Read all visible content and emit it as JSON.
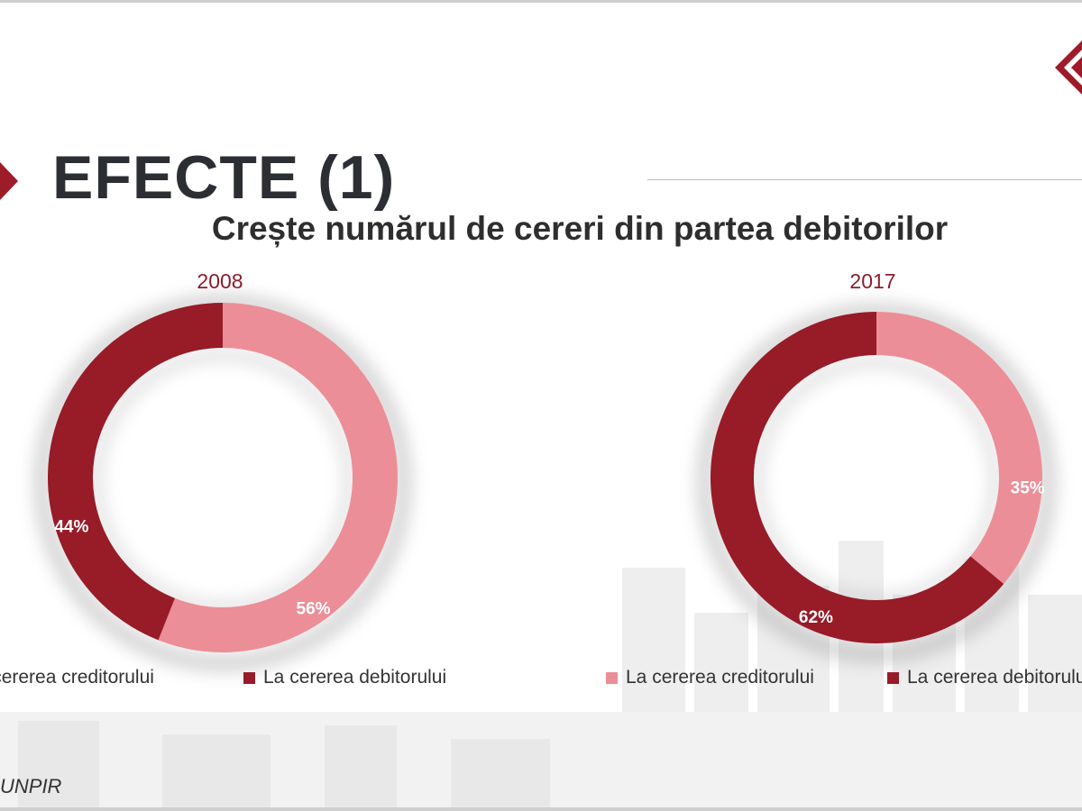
{
  "slide": {
    "title": "EFECTE (1)",
    "subtitle": "Crește numărul de cereri din partea debitorilor",
    "source": "UNPIR"
  },
  "colors": {
    "creditor": "#ec8e97",
    "debitor": "#981b28",
    "title_text": "#2b2f33",
    "accent": "#8b1e2a"
  },
  "chart_data": [
    {
      "type": "pie",
      "title": "2008",
      "series": [
        {
          "name": "La cererea creditorului",
          "value": 56,
          "label": "56%"
        },
        {
          "name": "La cererea debitorului",
          "value": 44,
          "label": "44%"
        }
      ],
      "legend": [
        "La cererea creditorului",
        "La cererea debitorului"
      ]
    },
    {
      "type": "pie",
      "title": "2017",
      "series": [
        {
          "name": "La cererea creditorului",
          "value": 35,
          "label": "35%"
        },
        {
          "name": "La cererea debitorului",
          "value": 62,
          "label": "62%"
        }
      ],
      "legend": [
        "La cererea creditorului",
        "La cererea debitorului"
      ]
    }
  ]
}
